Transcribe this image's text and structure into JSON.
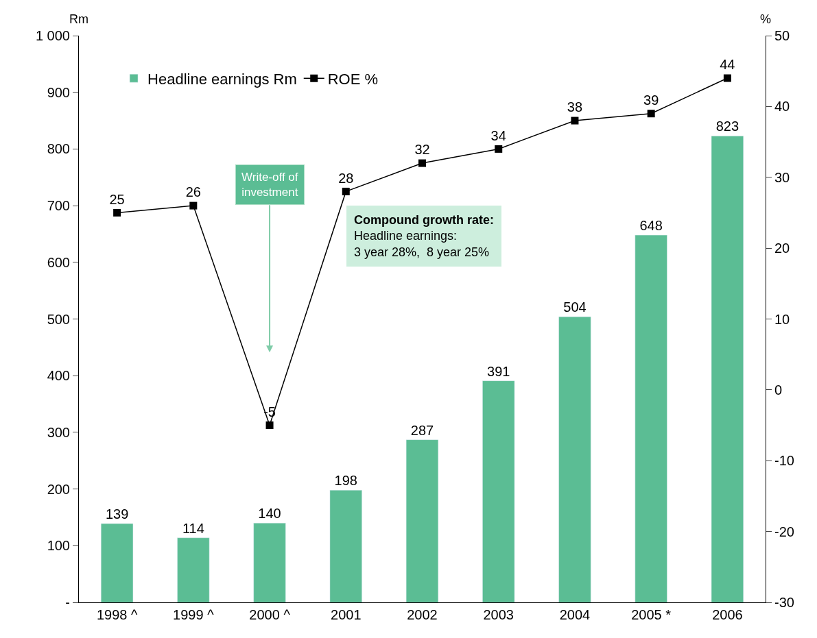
{
  "chart_data": {
    "type": "bar",
    "categories": [
      "1998 ^",
      "1999 ^",
      "2000 ^",
      "2001",
      "2002",
      "2003",
      "2004",
      "2005 *",
      "2006"
    ],
    "series": [
      {
        "name": "Headline earnings Rm",
        "color": "#5bbd94",
        "values": [
          139,
          114,
          140,
          198,
          287,
          391,
          504,
          648,
          823
        ]
      },
      {
        "name": "ROE %",
        "type": "line",
        "axis": "y2",
        "color": "#000000",
        "marker": "square",
        "values": [
          25,
          26,
          -5,
          28,
          32,
          34,
          38,
          39,
          44
        ]
      }
    ],
    "ylabel": "Rm",
    "y2label": "%",
    "ylim": [
      0,
      1000
    ],
    "yticks": [
      {
        "value": 0,
        "label": "-"
      },
      100,
      200,
      300,
      400,
      500,
      600,
      700,
      800,
      900,
      {
        "value": 1000,
        "label": "1 000"
      }
    ],
    "y2lim": [
      -30,
      50
    ],
    "y2ticks": [
      -30,
      -20,
      -10,
      0,
      10,
      20,
      30,
      40,
      50
    ],
    "data_labels": true,
    "legend": "top",
    "annotations": [
      "Write-off of\ninvestment",
      "Compound growth rate:\nHeadline earnings:\n3 year 28%,  8 year 25%"
    ]
  }
}
